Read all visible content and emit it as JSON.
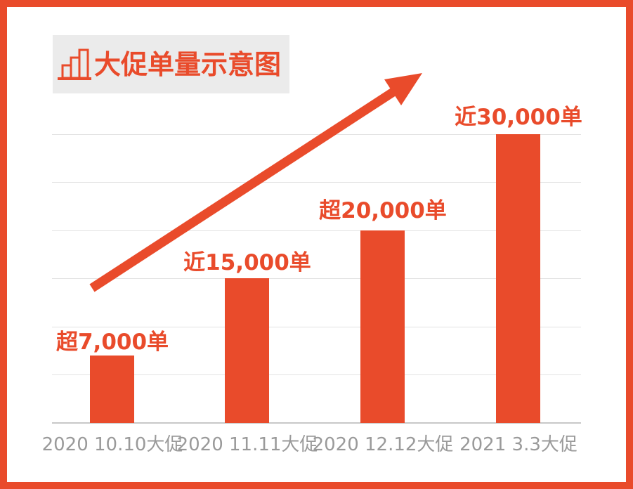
{
  "title": "大促单量示意图",
  "colors": {
    "accent": "#e94b2b",
    "background": "#ffffff",
    "title_bg": "#ebebeb",
    "gridline": "#e2e2e2",
    "baseline": "#c8c8c8",
    "axis_text": "#9a9a9a"
  },
  "icons": {
    "title_icon": "bar-chart-icon",
    "annotation_icon": "up-right-trend-arrow"
  },
  "chart_data": {
    "type": "bar",
    "title": "大促单量示意图",
    "categories": [
      "2020 10.10大促",
      "2020 11.11大促",
      "2020 12.12大促",
      "2021 3.3大促"
    ],
    "values": [
      7000,
      15000,
      20000,
      30000
    ],
    "value_labels": [
      "超7,000单",
      "近15,000单",
      "超20,000单",
      "近30,000单"
    ],
    "xlabel": "",
    "ylabel": "",
    "ylim": [
      0,
      30000
    ],
    "gridline_step": 5000,
    "grid": true,
    "legend": false,
    "bar_color": "#e94b2b",
    "annotations": [
      "upward trend arrow from first bar toward top right"
    ]
  }
}
